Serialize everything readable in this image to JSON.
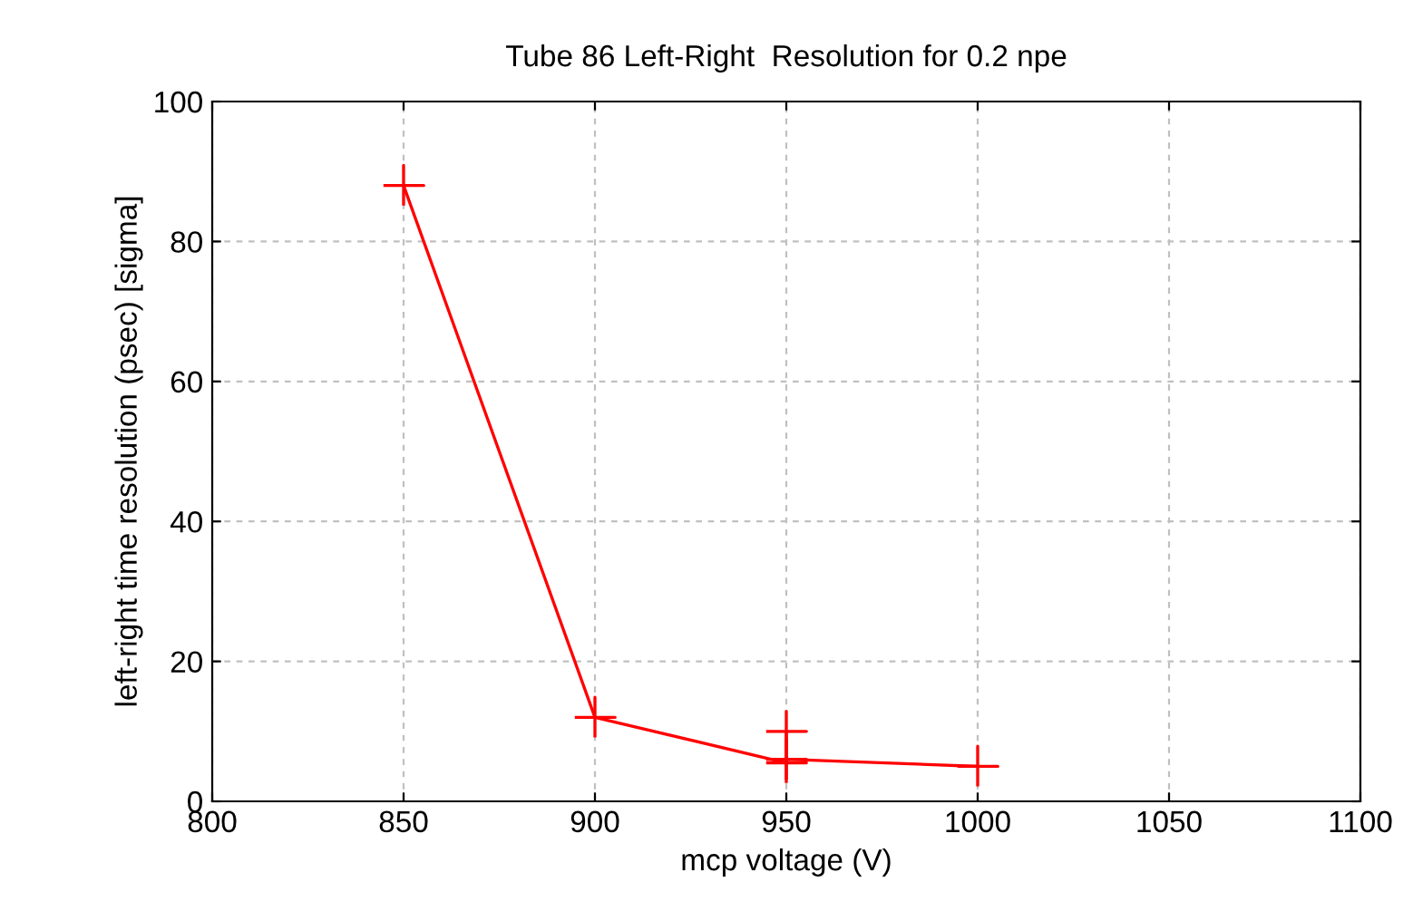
{
  "chart_data": {
    "type": "line",
    "title": "Tube 86 Left-Right  Resolution for 0.2 npe",
    "xlabel": "mcp voltage (V)",
    "ylabel": "left-right time resolution (psec) [sigma]",
    "x": [
      850,
      900,
      950,
      950,
      950,
      1000
    ],
    "series": [
      {
        "color": "#ff0000",
        "values": [
          88,
          12,
          5.5,
          10,
          6,
          5
        ]
      }
    ],
    "xlim": [
      800,
      1100
    ],
    "xticks": [
      800,
      850,
      900,
      950,
      1000,
      1050,
      1100
    ],
    "ylim": [
      0,
      100
    ],
    "yticks": [
      0,
      20,
      40,
      60,
      80,
      100
    ],
    "grid": true,
    "marker": "cross",
    "line_style": "solid"
  }
}
